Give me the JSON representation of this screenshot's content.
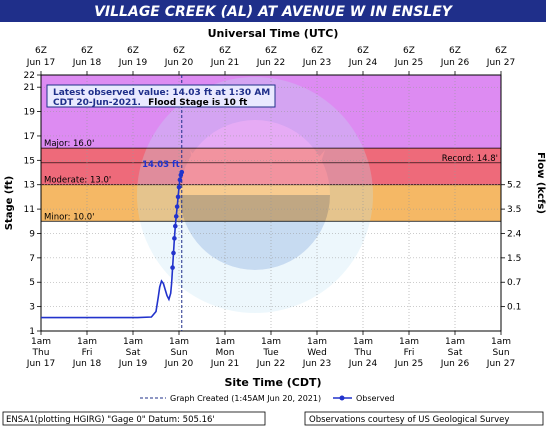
{
  "title": "VILLAGE CREEK (AL) AT AVENUE W IN ENSLEY",
  "top_axis_title": "Universal Time (UTC)",
  "bottom_axis_title": "Site Time (CDT)",
  "colors": {
    "title_bar": "#1f2f8a",
    "major": "#dd8bf2",
    "moderate": "#ee6a7a",
    "minor": "#f5b865",
    "observed": "#2233cc",
    "legend_bar": "#1f2f8a"
  },
  "obs_box": {
    "line1": "Latest observed value: 14.03 ft at 1:30 AM",
    "line2": "CDT 20-Jun-2021.",
    "line2_bold": "Flood Stage is 10 ft"
  },
  "legend": {
    "created": "Graph Created (1:45AM Jun 20, 2021)",
    "observed": "Observed"
  },
  "footer": {
    "left": "ENSA1(plotting HGIRG) \"Gage 0\" Datum: 505.16'",
    "right": "Observations courtesy of US Geological Survey"
  },
  "chart_data": {
    "type": "line",
    "ylabel": "Stage (ft)",
    "y2label": "Flow (kcfs)",
    "ylim": [
      1,
      22
    ],
    "y_ticks": [
      1,
      3,
      5,
      7,
      9,
      11,
      13,
      15,
      17,
      19,
      21,
      22
    ],
    "x_range_days": [
      "Jun 17 00:00 CDT",
      "Jun 27 00:00 CDT"
    ],
    "top_ticks": [
      {
        "l1": "6Z",
        "l2": "Jun 17"
      },
      {
        "l1": "6Z",
        "l2": "Jun 18"
      },
      {
        "l1": "6Z",
        "l2": "Jun 19"
      },
      {
        "l1": "6Z",
        "l2": "Jun 20"
      },
      {
        "l1": "6Z",
        "l2": "Jun 21"
      },
      {
        "l1": "6Z",
        "l2": "Jun 22"
      },
      {
        "l1": "6Z",
        "l2": "Jun 23"
      },
      {
        "l1": "6Z",
        "l2": "Jun 24"
      },
      {
        "l1": "6Z",
        "l2": "Jun 25"
      },
      {
        "l1": "6Z",
        "l2": "Jun 26"
      },
      {
        "l1": "6Z",
        "l2": "Jun 27"
      }
    ],
    "bottom_ticks": [
      {
        "l1": "1am",
        "l2": "Thu",
        "l3": "Jun 17"
      },
      {
        "l1": "1am",
        "l2": "Fri",
        "l3": "Jun 18"
      },
      {
        "l1": "1am",
        "l2": "Sat",
        "l3": "Jun 19"
      },
      {
        "l1": "1am",
        "l2": "Sun",
        "l3": "Jun 20"
      },
      {
        "l1": "1am",
        "l2": "Mon",
        "l3": "Jun 21"
      },
      {
        "l1": "1am",
        "l2": "Tue",
        "l3": "Jun 22"
      },
      {
        "l1": "1am",
        "l2": "Wed",
        "l3": "Jun 23"
      },
      {
        "l1": "1am",
        "l2": "Thu",
        "l3": "Jun 24"
      },
      {
        "l1": "1am",
        "l2": "Fri",
        "l3": "Jun 25"
      },
      {
        "l1": "1am",
        "l2": "Sat",
        "l3": "Jun 26"
      },
      {
        "l1": "1am",
        "l2": "Sun",
        "l3": "Jun 27"
      }
    ],
    "flow_ticks": [
      {
        "stage": 13.0,
        "label": "5.2"
      },
      {
        "stage": 11.0,
        "label": "3.5"
      },
      {
        "stage": 9.0,
        "label": "2.4"
      },
      {
        "stage": 7.0,
        "label": "1.5"
      },
      {
        "stage": 5.0,
        "label": "0.7"
      },
      {
        "stage": 3.0,
        "label": "0.1"
      }
    ],
    "flood_categories": [
      {
        "name": "Major",
        "label": "Major: 16.0'",
        "from": 16.0,
        "to": 22.0
      },
      {
        "name": "Moderate",
        "label": "Moderate: 13.0'",
        "from": 13.0,
        "to": 16.0
      },
      {
        "name": "Minor",
        "label": "Minor: 10.0'",
        "from": 10.0,
        "to": 13.0
      }
    ],
    "record": {
      "label": "Record: 14.8'",
      "value": 14.8
    },
    "latest": {
      "label": "14.03 ft",
      "value": 14.03,
      "day": 3.06
    },
    "series": [
      {
        "name": "Observed",
        "points": [
          [
            0.0,
            2.1
          ],
          [
            0.3,
            2.1
          ],
          [
            0.6,
            2.1
          ],
          [
            0.9,
            2.1
          ],
          [
            1.2,
            2.1
          ],
          [
            1.5,
            2.1
          ],
          [
            1.8,
            2.1
          ],
          [
            2.1,
            2.1
          ],
          [
            2.4,
            2.15
          ],
          [
            2.5,
            2.6
          ],
          [
            2.55,
            3.8
          ],
          [
            2.58,
            4.6
          ],
          [
            2.62,
            5.1
          ],
          [
            2.66,
            4.9
          ],
          [
            2.7,
            4.4
          ],
          [
            2.74,
            3.9
          ],
          [
            2.78,
            3.6
          ],
          [
            2.82,
            4.1
          ],
          [
            2.84,
            4.9
          ],
          [
            2.86,
            6.2
          ],
          [
            2.88,
            7.4
          ],
          [
            2.9,
            8.6
          ],
          [
            2.92,
            9.6
          ],
          [
            2.94,
            10.4
          ],
          [
            2.96,
            11.2
          ],
          [
            2.98,
            12.0
          ],
          [
            3.0,
            12.8
          ],
          [
            3.02,
            13.4
          ],
          [
            3.04,
            13.8
          ],
          [
            3.06,
            14.03
          ]
        ]
      }
    ]
  }
}
